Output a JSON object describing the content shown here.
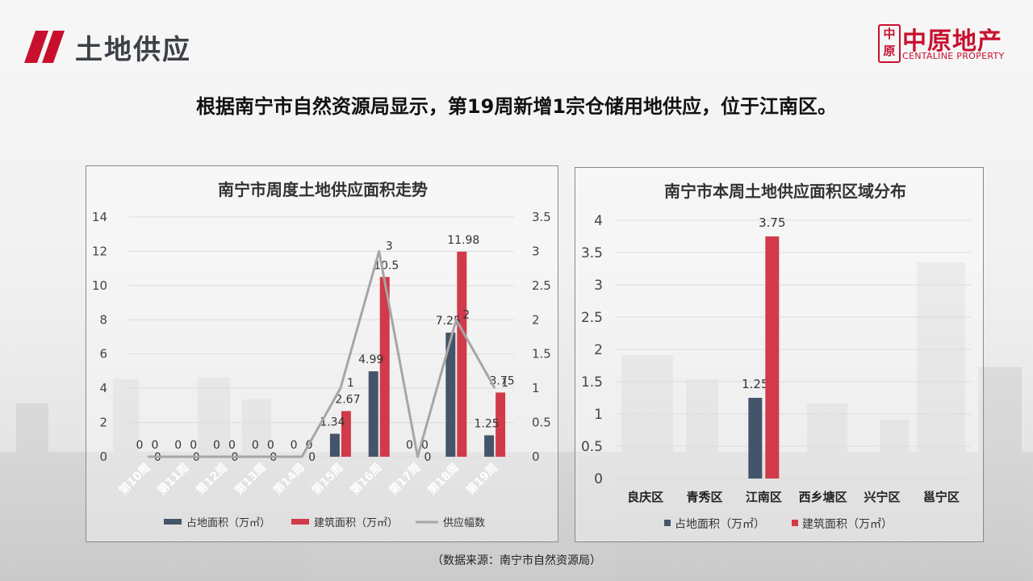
{
  "page": {
    "title": "土地供应",
    "subtitle": "根据南宁市自然资源局显示，第19周新增1宗仓储用地供应，位于江南区。",
    "footnote": "（数据来源：南宁市自然资源局）",
    "logo": {
      "seal": "中原",
      "cn": "中原地产",
      "en": "CENTALINE PROPERTY"
    },
    "colors": {
      "accent": "#c8102e",
      "navy": "#44546a",
      "red": "#d13a4a",
      "line": "#a6a6a6"
    }
  },
  "chart_data": [
    {
      "type": "bar",
      "title": "南宁市周度土地供应面积走势",
      "categories": [
        "第10周",
        "第11周",
        "第12周",
        "第13周",
        "第14周",
        "第15周",
        "第16周",
        "第17周",
        "第18周",
        "第19周"
      ],
      "series": [
        {
          "name": "占地面积（万㎡）",
          "type": "bar",
          "axis": "left",
          "values": [
            0,
            0,
            0,
            0,
            0,
            1.34,
            4.99,
            0,
            7.25,
            1.25
          ]
        },
        {
          "name": "建筑面积（万㎡）",
          "type": "bar",
          "axis": "left",
          "values": [
            0,
            0,
            0,
            0,
            0,
            2.67,
            10.5,
            0,
            11.98,
            3.75
          ]
        },
        {
          "name": "供应幅数",
          "type": "line",
          "axis": "right",
          "values": [
            0,
            0,
            0,
            0,
            0,
            1,
            3,
            0,
            2,
            1
          ]
        }
      ],
      "ylim": [
        0,
        14
      ],
      "yticks": [
        0,
        2,
        4,
        6,
        8,
        10,
        12,
        14
      ],
      "y2lim": [
        0,
        3.5
      ],
      "y2ticks": [
        "0",
        "0.5",
        "1",
        "1.5",
        "2",
        "2.5",
        "3",
        "3.5"
      ],
      "legend": "bottom",
      "grid": true
    },
    {
      "type": "bar",
      "title": "南宁市本周土地供应面积区域分布",
      "categories": [
        "良庆区",
        "青秀区",
        "江南区",
        "西乡塘区",
        "兴宁区",
        "邕宁区"
      ],
      "series": [
        {
          "name": "占地面积（万㎡）",
          "values": [
            null,
            null,
            1.25,
            null,
            null,
            null
          ]
        },
        {
          "name": "建筑面积（万㎡）",
          "values": [
            null,
            null,
            3.75,
            null,
            null,
            null
          ]
        }
      ],
      "ylim": [
        0,
        4
      ],
      "yticks": [
        "0",
        "0.5",
        "1",
        "1.5",
        "2",
        "2.5",
        "3",
        "3.5",
        "4"
      ],
      "legend": "bottom",
      "grid": true
    }
  ]
}
